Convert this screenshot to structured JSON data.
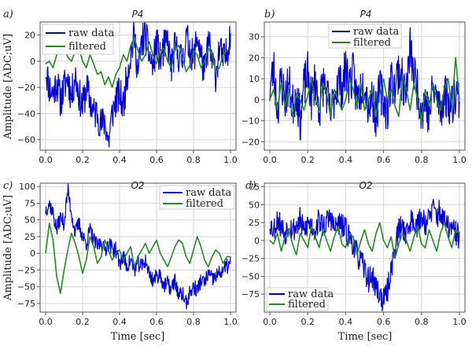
{
  "figure": {
    "ylabel": "Amplitude [ADC;uV]",
    "xlabel": "Time [sec]"
  },
  "colors": {
    "raw": "#0000dd",
    "filtered": "#228b22",
    "grid": "#d6d6d6",
    "axis": "#555555"
  },
  "chart_data": [
    {
      "id": "a",
      "panel_label": "a)",
      "type": "line",
      "title": "P4",
      "xlabel": "",
      "ylabel": "Amplitude [ADC;uV]",
      "xlim": [
        0,
        1
      ],
      "ylim": [
        -68,
        30
      ],
      "xticks": [
        0.0,
        0.2,
        0.4,
        0.6,
        0.8,
        1.0
      ],
      "xtick_labels": [
        "0.0",
        "0.2",
        "0.4",
        "0.6",
        "0.8",
        "1.0"
      ],
      "yticks": [
        20,
        0,
        -20,
        -40,
        -60
      ],
      "ytick_labels": [
        "20",
        "0",
        "−20",
        "−40",
        "−60"
      ],
      "legend_position": "top-left",
      "series": [
        {
          "name": "raw data",
          "color": "#0000dd",
          "x": [
            0.0,
            0.02,
            0.04,
            0.06,
            0.08,
            0.1,
            0.12,
            0.14,
            0.16,
            0.18,
            0.2,
            0.22,
            0.24,
            0.26,
            0.28,
            0.3,
            0.32,
            0.34,
            0.36,
            0.38,
            0.4,
            0.42,
            0.44,
            0.46,
            0.48,
            0.5,
            0.52,
            0.54,
            0.56,
            0.58,
            0.6,
            0.62,
            0.64,
            0.66,
            0.68,
            0.7,
            0.72,
            0.74,
            0.76,
            0.78,
            0.8,
            0.82,
            0.84,
            0.86,
            0.88,
            0.9,
            0.92,
            0.94,
            0.96,
            0.98,
            1.0
          ],
          "y": [
            -5,
            -20,
            -25,
            -15,
            -30,
            -20,
            -12,
            -28,
            -10,
            -25,
            -35,
            -20,
            -30,
            -40,
            -38,
            -50,
            -45,
            -62,
            -40,
            -30,
            -25,
            -35,
            -10,
            5,
            20,
            -10,
            15,
            20,
            5,
            -5,
            15,
            0,
            10,
            15,
            -5,
            10,
            5,
            0,
            18,
            10,
            0,
            20,
            5,
            -10,
            15,
            0,
            -10,
            10,
            0,
            5,
            25
          ],
          "noise_amp": 14,
          "noise_seed": 11
        },
        {
          "name": "filtered",
          "color": "#228b22",
          "x": [
            0.0,
            0.02,
            0.04,
            0.06,
            0.08,
            0.1,
            0.12,
            0.14,
            0.16,
            0.18,
            0.2,
            0.22,
            0.24,
            0.26,
            0.28,
            0.3,
            0.32,
            0.34,
            0.36,
            0.38,
            0.4,
            0.42,
            0.44,
            0.46,
            0.48,
            0.5,
            0.52,
            0.54,
            0.56,
            0.58,
            0.6,
            0.62,
            0.64,
            0.66,
            0.68,
            0.7,
            0.72,
            0.74,
            0.76,
            0.78,
            0.8,
            0.82,
            0.84,
            0.86,
            0.88,
            0.9,
            0.92,
            0.94,
            0.96,
            0.98,
            1.0
          ],
          "y": [
            -2,
            0,
            -5,
            5,
            12,
            10,
            3,
            0,
            8,
            10,
            0,
            -5,
            5,
            -2,
            -10,
            -8,
            -18,
            -12,
            -20,
            -10,
            -5,
            5,
            0,
            12,
            18,
            8,
            0,
            5,
            15,
            5,
            -2,
            8,
            10,
            0,
            -5,
            10,
            12,
            3,
            -8,
            -3,
            8,
            5,
            -5,
            0,
            10,
            5,
            -8,
            -5,
            5,
            8,
            10
          ],
          "noise_amp": 0,
          "noise_seed": 0
        }
      ]
    },
    {
      "id": "b",
      "panel_label": "b)",
      "type": "line",
      "title": "P4",
      "xlabel": "",
      "ylabel": "",
      "xlim": [
        0,
        1
      ],
      "ylim": [
        -24,
        37
      ],
      "xticks": [
        0.0,
        0.2,
        0.4,
        0.6,
        0.8,
        1.0
      ],
      "xtick_labels": [
        "0.0",
        "0.2",
        "0.4",
        "0.6",
        "0.8",
        "1.0"
      ],
      "yticks": [
        30,
        20,
        10,
        0,
        -10,
        -20
      ],
      "ytick_labels": [
        "30",
        "20",
        "10",
        "0",
        "−10",
        "−20"
      ],
      "legend_position": "top-right",
      "series": [
        {
          "name": "raw data",
          "color": "#0000dd",
          "x": [
            0.0,
            0.02,
            0.04,
            0.06,
            0.08,
            0.1,
            0.12,
            0.14,
            0.16,
            0.18,
            0.2,
            0.22,
            0.24,
            0.26,
            0.28,
            0.3,
            0.32,
            0.34,
            0.36,
            0.38,
            0.4,
            0.42,
            0.44,
            0.46,
            0.48,
            0.5,
            0.52,
            0.54,
            0.56,
            0.58,
            0.6,
            0.62,
            0.64,
            0.66,
            0.68,
            0.7,
            0.72,
            0.74,
            0.76,
            0.78,
            0.8,
            0.82,
            0.84,
            0.86,
            0.88,
            0.9,
            0.92,
            0.94,
            0.96,
            0.98,
            1.0
          ],
          "y": [
            5,
            15,
            -5,
            10,
            0,
            8,
            -3,
            5,
            -10,
            6,
            12,
            0,
            10,
            -5,
            8,
            3,
            -8,
            2,
            10,
            5,
            15,
            8,
            12,
            0,
            5,
            10,
            -3,
            2,
            -8,
            5,
            0,
            -5,
            10,
            6,
            15,
            8,
            3,
            25,
            12,
            5,
            -5,
            0,
            -8,
            5,
            2,
            -5,
            3,
            0,
            -3,
            5,
            0
          ],
          "noise_amp": 11,
          "noise_seed": 23
        },
        {
          "name": "filtered",
          "color": "#228b22",
          "x": [
            0.0,
            0.02,
            0.04,
            0.06,
            0.08,
            0.1,
            0.12,
            0.14,
            0.16,
            0.18,
            0.2,
            0.22,
            0.24,
            0.26,
            0.28,
            0.3,
            0.32,
            0.34,
            0.36,
            0.38,
            0.4,
            0.42,
            0.44,
            0.46,
            0.48,
            0.5,
            0.52,
            0.54,
            0.56,
            0.58,
            0.6,
            0.62,
            0.64,
            0.66,
            0.68,
            0.7,
            0.72,
            0.74,
            0.76,
            0.78,
            0.8,
            0.82,
            0.84,
            0.86,
            0.88,
            0.9,
            0.92,
            0.94,
            0.96,
            0.98,
            1.0
          ],
          "y": [
            0,
            5,
            -5,
            8,
            -3,
            5,
            -8,
            3,
            0,
            -5,
            2,
            10,
            0,
            -5,
            8,
            3,
            -8,
            5,
            0,
            -5,
            0,
            10,
            5,
            -3,
            8,
            -5,
            0,
            5,
            -8,
            3,
            10,
            0,
            5,
            -3,
            -8,
            12,
            5,
            -5,
            8,
            0,
            -10,
            5,
            -3,
            8,
            0,
            -5,
            5,
            10,
            -3,
            20,
            0
          ],
          "noise_amp": 0,
          "noise_seed": 0
        }
      ]
    },
    {
      "id": "c",
      "panel_label": "c)",
      "type": "line",
      "title": "O2",
      "xlabel": "Time [sec]",
      "ylabel": "Amplitude [ADC;uV]",
      "xlim": [
        0,
        1
      ],
      "ylim": [
        -88,
        105
      ],
      "xticks": [
        0.0,
        0.2,
        0.4,
        0.6,
        0.8,
        1.0
      ],
      "xtick_labels": [
        "0.0",
        "0.2",
        "0.4",
        "0.6",
        "0.8",
        "1.0"
      ],
      "yticks": [
        100,
        75,
        50,
        25,
        0,
        -25,
        -50,
        -75
      ],
      "ytick_labels": [
        "100",
        "75",
        "50",
        "25",
        "0",
        "−25",
        "−50",
        "−75"
      ],
      "legend_position": "top-right",
      "series": [
        {
          "name": "raw data",
          "color": "#0000dd",
          "x": [
            0.0,
            0.02,
            0.04,
            0.06,
            0.08,
            0.1,
            0.12,
            0.14,
            0.16,
            0.18,
            0.2,
            0.22,
            0.24,
            0.26,
            0.28,
            0.3,
            0.32,
            0.34,
            0.36,
            0.38,
            0.4,
            0.42,
            0.44,
            0.46,
            0.48,
            0.5,
            0.52,
            0.54,
            0.56,
            0.58,
            0.6,
            0.62,
            0.64,
            0.66,
            0.68,
            0.7,
            0.72,
            0.74,
            0.76,
            0.78,
            0.8,
            0.82,
            0.84,
            0.86,
            0.88,
            0.9,
            0.92,
            0.94,
            0.96,
            0.98,
            1.0
          ],
          "y": [
            65,
            75,
            60,
            35,
            55,
            45,
            95,
            60,
            30,
            45,
            25,
            15,
            35,
            20,
            10,
            18,
            5,
            15,
            8,
            5,
            -15,
            -5,
            -20,
            -10,
            -25,
            -15,
            -20,
            -10,
            -30,
            -40,
            -35,
            -30,
            -50,
            -45,
            -55,
            -40,
            -65,
            -60,
            -75,
            -60,
            -50,
            -55,
            -40,
            -45,
            -30,
            -40,
            -35,
            -30,
            -25,
            -20,
            -15
          ],
          "noise_amp": 12,
          "noise_seed": 37
        },
        {
          "name": "filtered",
          "color": "#228b22",
          "x": [
            0.0,
            0.02,
            0.04,
            0.06,
            0.08,
            0.1,
            0.12,
            0.14,
            0.16,
            0.18,
            0.2,
            0.22,
            0.24,
            0.26,
            0.28,
            0.3,
            0.32,
            0.34,
            0.36,
            0.38,
            0.4,
            0.42,
            0.44,
            0.46,
            0.48,
            0.5,
            0.52,
            0.54,
            0.56,
            0.58,
            0.6,
            0.62,
            0.64,
            0.66,
            0.68,
            0.7,
            0.72,
            0.74,
            0.76,
            0.78,
            0.8,
            0.82,
            0.84,
            0.86,
            0.88,
            0.9,
            0.92,
            0.94,
            0.96,
            0.98,
            1.0
          ],
          "y": [
            0,
            45,
            20,
            -35,
            -60,
            -25,
            5,
            30,
            15,
            -5,
            -30,
            -10,
            25,
            10,
            -15,
            -5,
            20,
            5,
            -10,
            0,
            5,
            -10,
            0,
            10,
            -20,
            -5,
            5,
            15,
            0,
            10,
            20,
            0,
            -10,
            -20,
            -5,
            10,
            20,
            15,
            -5,
            -15,
            5,
            25,
            10,
            -10,
            -20,
            -5,
            5,
            0,
            -15,
            -5,
            -5
          ],
          "noise_amp": 0,
          "noise_seed": 0
        }
      ]
    },
    {
      "id": "d",
      "panel_label": "d)",
      "type": "line",
      "title": "O2",
      "xlabel": "Time [sec]",
      "ylabel": "",
      "xlim": [
        0,
        1
      ],
      "ylim": [
        -100,
        80
      ],
      "xticks": [
        0.0,
        0.2,
        0.4,
        0.6,
        0.8,
        1.0
      ],
      "xtick_labels": [
        "0.0",
        "0.2",
        "0.4",
        "0.6",
        "0.8",
        "1.0"
      ],
      "yticks": [
        75,
        50,
        25,
        0,
        -25,
        -50,
        -75
      ],
      "ytick_labels": [
        "75",
        "50",
        "25",
        "0",
        "−25",
        "−50",
        "−75"
      ],
      "legend_position": "bottom-left",
      "series": [
        {
          "name": "raw data",
          "color": "#0000dd",
          "x": [
            0.0,
            0.02,
            0.04,
            0.06,
            0.08,
            0.1,
            0.12,
            0.14,
            0.16,
            0.18,
            0.2,
            0.22,
            0.24,
            0.26,
            0.28,
            0.3,
            0.32,
            0.34,
            0.36,
            0.38,
            0.4,
            0.42,
            0.44,
            0.46,
            0.48,
            0.5,
            0.52,
            0.54,
            0.56,
            0.58,
            0.6,
            0.62,
            0.64,
            0.66,
            0.68,
            0.7,
            0.72,
            0.74,
            0.76,
            0.78,
            0.8,
            0.82,
            0.84,
            0.86,
            0.88,
            0.9,
            0.92,
            0.94,
            0.96,
            0.98,
            1.0
          ],
          "y": [
            25,
            15,
            30,
            20,
            10,
            25,
            15,
            20,
            30,
            10,
            25,
            20,
            15,
            30,
            20,
            25,
            35,
            15,
            25,
            20,
            15,
            5,
            -5,
            -20,
            -30,
            -40,
            -55,
            -50,
            -65,
            -75,
            -85,
            -70,
            -40,
            -10,
            15,
            20,
            10,
            25,
            30,
            20,
            35,
            25,
            30,
            45,
            35,
            40,
            25,
            20,
            15,
            10,
            5
          ],
          "noise_amp": 18,
          "noise_seed": 53
        },
        {
          "name": "filtered",
          "color": "#228b22",
          "x": [
            0.0,
            0.02,
            0.04,
            0.06,
            0.08,
            0.1,
            0.12,
            0.14,
            0.16,
            0.18,
            0.2,
            0.22,
            0.24,
            0.26,
            0.28,
            0.3,
            0.32,
            0.34,
            0.36,
            0.38,
            0.4,
            0.42,
            0.44,
            0.46,
            0.48,
            0.5,
            0.52,
            0.54,
            0.56,
            0.58,
            0.6,
            0.62,
            0.64,
            0.66,
            0.68,
            0.7,
            0.72,
            0.74,
            0.76,
            0.78,
            0.8,
            0.82,
            0.84,
            0.86,
            0.88,
            0.9,
            0.92,
            0.94,
            0.96,
            0.98,
            1.0
          ],
          "y": [
            0,
            -5,
            10,
            -15,
            5,
            15,
            -5,
            -20,
            10,
            0,
            -10,
            20,
            5,
            -10,
            15,
            0,
            -15,
            5,
            20,
            -5,
            -10,
            10,
            5,
            -20,
            0,
            15,
            -5,
            -15,
            10,
            25,
            0,
            -10,
            5,
            -25,
            -5,
            10,
            0,
            -15,
            5,
            20,
            -5,
            -10,
            15,
            0,
            -15,
            10,
            25,
            5,
            -10,
            15,
            10
          ],
          "noise_amp": 0,
          "noise_seed": 0
        }
      ]
    }
  ]
}
